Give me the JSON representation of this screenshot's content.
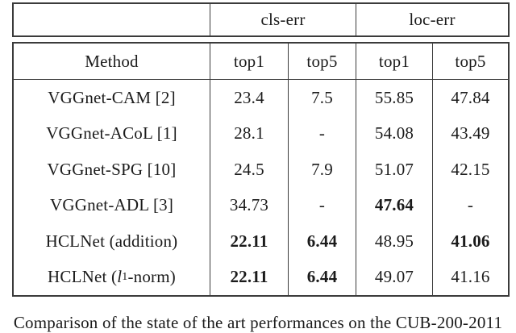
{
  "colors": {
    "background": "#ffffff",
    "text": "#1b1b1b",
    "border": "#3b3b3b"
  },
  "header": {
    "groups": [
      "cls-err",
      "loc-err"
    ],
    "method_label": "Method",
    "subcols": [
      "top1",
      "top5",
      "top1",
      "top5"
    ]
  },
  "table": {
    "rows": [
      {
        "method": "VGGnet-CAM [2]",
        "values": [
          "23.4",
          "7.5",
          "55.85",
          "47.84"
        ]
      },
      {
        "method": "VGGnet-ACoL [1]",
        "values": [
          "28.1",
          "-",
          "54.08",
          "43.49"
        ]
      },
      {
        "method": "VGGnet-SPG [10]",
        "values": [
          "24.5",
          "7.9",
          "51.07",
          "42.15"
        ]
      },
      {
        "method": "VGGnet-ADL [3]",
        "values": [
          "34.73",
          "-",
          "47.64",
          "-"
        ]
      },
      {
        "method": "HCLNet (addition)",
        "values": [
          "22.11",
          "6.44",
          "48.95",
          "41.06"
        ]
      },
      {
        "method_prefix": "HCLNet (",
        "method_italic": "l",
        "method_subscript": "1",
        "method_suffix": "-norm)",
        "values": [
          "22.11",
          "6.44",
          "49.07",
          "41.16"
        ]
      }
    ]
  },
  "caption": "Comparison of the state of the art performances on the CUB-200-2011",
  "chart_data": {
    "type": "table",
    "title": "Comparison of the state of the art performances on the CUB-200-2011",
    "column_groups": [
      "cls-err",
      "loc-err"
    ],
    "columns": [
      "Method",
      "cls-err top1",
      "cls-err top5",
      "loc-err top1",
      "loc-err top5"
    ],
    "rows": [
      [
        "VGGnet-CAM [2]",
        "23.4",
        "7.5",
        "55.85",
        "47.84"
      ],
      [
        "VGGnet-ACoL [1]",
        "28.1",
        "-",
        "54.08",
        "43.49"
      ],
      [
        "VGGnet-SPG [10]",
        "24.5",
        "7.9",
        "51.07",
        "42.15"
      ],
      [
        "VGGnet-ADL [3]",
        "34.73",
        "-",
        "47.64",
        "-"
      ],
      [
        "HCLNet (addition)",
        "22.11",
        "6.44",
        "48.95",
        "41.06"
      ],
      [
        "HCLNet (l1-norm)",
        "22.11",
        "6.44",
        "49.07",
        "41.16"
      ]
    ],
    "bold_cells": [
      [
        3,
        3
      ],
      [
        4,
        1
      ],
      [
        4,
        2
      ],
      [
        4,
        4
      ],
      [
        5,
        1
      ],
      [
        5,
        2
      ]
    ]
  }
}
